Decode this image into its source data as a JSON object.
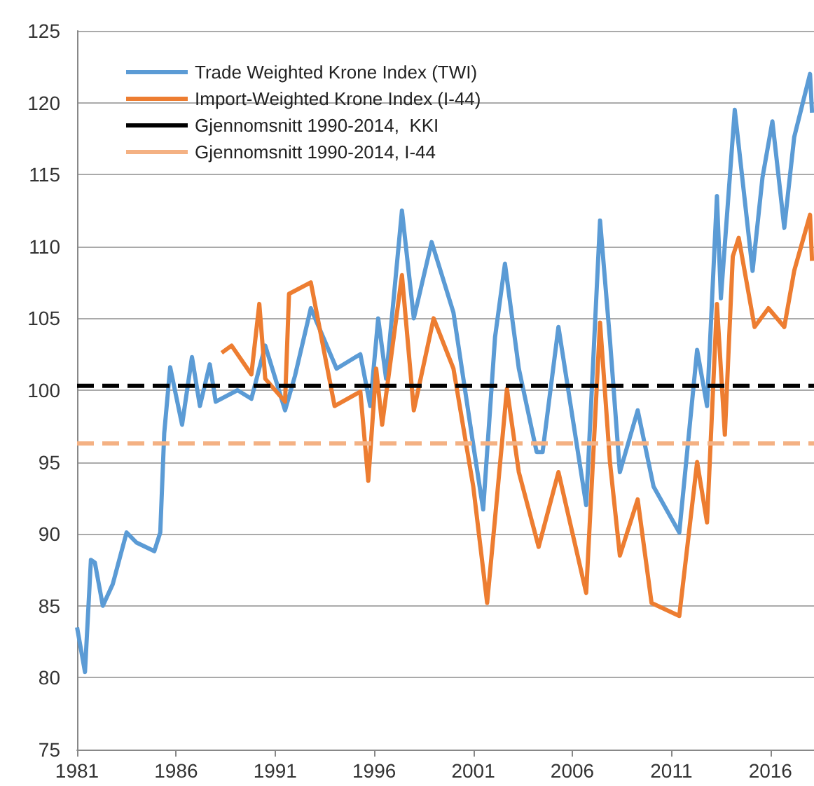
{
  "chart_data": {
    "type": "line",
    "series": [
      {
        "name": "Trade Weighted Krone Index (TWI)",
        "color": "#5b9bd5",
        "x": [
          1981.0,
          1981.4,
          1981.7,
          1981.9,
          1982.3,
          1982.8,
          1983.5,
          1984.0,
          1984.9,
          1985.2,
          1985.4,
          1985.7,
          1986.3,
          1986.8,
          1987.2,
          1987.7,
          1988.0,
          1989.1,
          1989.8,
          1990.5,
          1991.5,
          1992.0,
          1992.8,
          1994.1,
          1995.3,
          1995.8,
          1996.2,
          1996.6,
          1997.4,
          1998.0,
          1998.9,
          2000.0,
          2001.0,
          2001.5,
          2002.1,
          2002.6,
          2003.3,
          2004.2,
          2004.5,
          2005.3,
          2006.7,
          2007.4,
          2007.9,
          2008.4,
          2009.3,
          2010.1,
          2011.4,
          2012.3,
          2012.8,
          2013.3,
          2013.5,
          2014.2,
          2015.1,
          2015.6,
          2016.1,
          2016.7,
          2017.2,
          2018.0,
          2018.1
        ],
        "values": [
          83.5,
          80.4,
          88.2,
          88,
          85,
          86.5,
          90.1,
          89.4,
          88.8,
          90.1,
          97,
          101.6,
          97.6,
          102.3,
          98.9,
          101.8,
          99.2,
          100,
          99.4,
          103.1,
          98.6,
          101,
          105.7,
          101.5,
          102.5,
          98.9,
          105,
          100.8,
          112.5,
          105,
          110.3,
          105.4,
          96.2,
          91.7,
          103.7,
          108.8,
          101.5,
          95.7,
          95.7,
          104.4,
          92,
          111.8,
          103.5,
          94.3,
          98.6,
          93.3,
          90.1,
          102.8,
          98.9,
          113.5,
          106.4,
          119.5,
          108.3,
          114.8,
          118.7,
          111.3,
          117.6,
          122,
          119.3
        ]
      },
      {
        "name": "Import-Weighted Krone Index (I-44)",
        "color": "#ed7d31",
        "x": [
          1988.3,
          1988.8,
          1989.8,
          1990.2,
          1990.5,
          1991.5,
          1991.7,
          1992.8,
          1994.0,
          1995.3,
          1995.7,
          1996.1,
          1996.4,
          1997.4,
          1998.0,
          1999.0,
          2000.0,
          2001.0,
          2001.7,
          2002.1,
          2002.7,
          2003.3,
          2004.3,
          2005.3,
          2006.7,
          2007.4,
          2007.9,
          2008.4,
          2009.3,
          2010.0,
          2011.4,
          2012.3,
          2012.8,
          2013.3,
          2013.7,
          2014.1,
          2014.4,
          2015.2,
          2015.9,
          2016.7,
          2017.2,
          2018.0,
          2018.1
        ],
        "values": [
          102.6,
          103.1,
          101.1,
          106,
          100.8,
          99.2,
          106.7,
          107.5,
          98.9,
          99.9,
          93.7,
          101.5,
          97.6,
          108,
          98.6,
          105,
          101.5,
          93.3,
          85.2,
          91.1,
          100.1,
          94.3,
          89.1,
          94.3,
          85.9,
          104.7,
          95,
          88.5,
          92.4,
          85.2,
          84.3,
          95,
          90.8,
          106,
          96.9,
          109.3,
          110.6,
          104.4,
          105.7,
          104.4,
          108.3,
          112.2,
          109
        ]
      }
    ],
    "ref_lines": [
      {
        "axis": "y",
        "value": 100.3,
        "label": "Gjennomsnitt 1990-2014,  KKI",
        "color": "#000000",
        "line_style": "dashed"
      },
      {
        "axis": "y",
        "value": 96.3,
        "label": "Gjennomsnitt 1990-2014, I-44",
        "color": "#f4b183",
        "line_style": "dashed"
      }
    ],
    "xlim": [
      1981,
      2018.2
    ],
    "xticks": [
      1981,
      1986,
      1991,
      1996,
      2001,
      2006,
      2011,
      2016
    ],
    "ylim": [
      75,
      125
    ],
    "yticks": [
      75,
      80,
      85,
      90,
      95,
      100,
      105,
      110,
      115,
      120,
      125
    ],
    "grid": "y",
    "legend": "top left",
    "marker": "none",
    "line_style": "solid"
  }
}
